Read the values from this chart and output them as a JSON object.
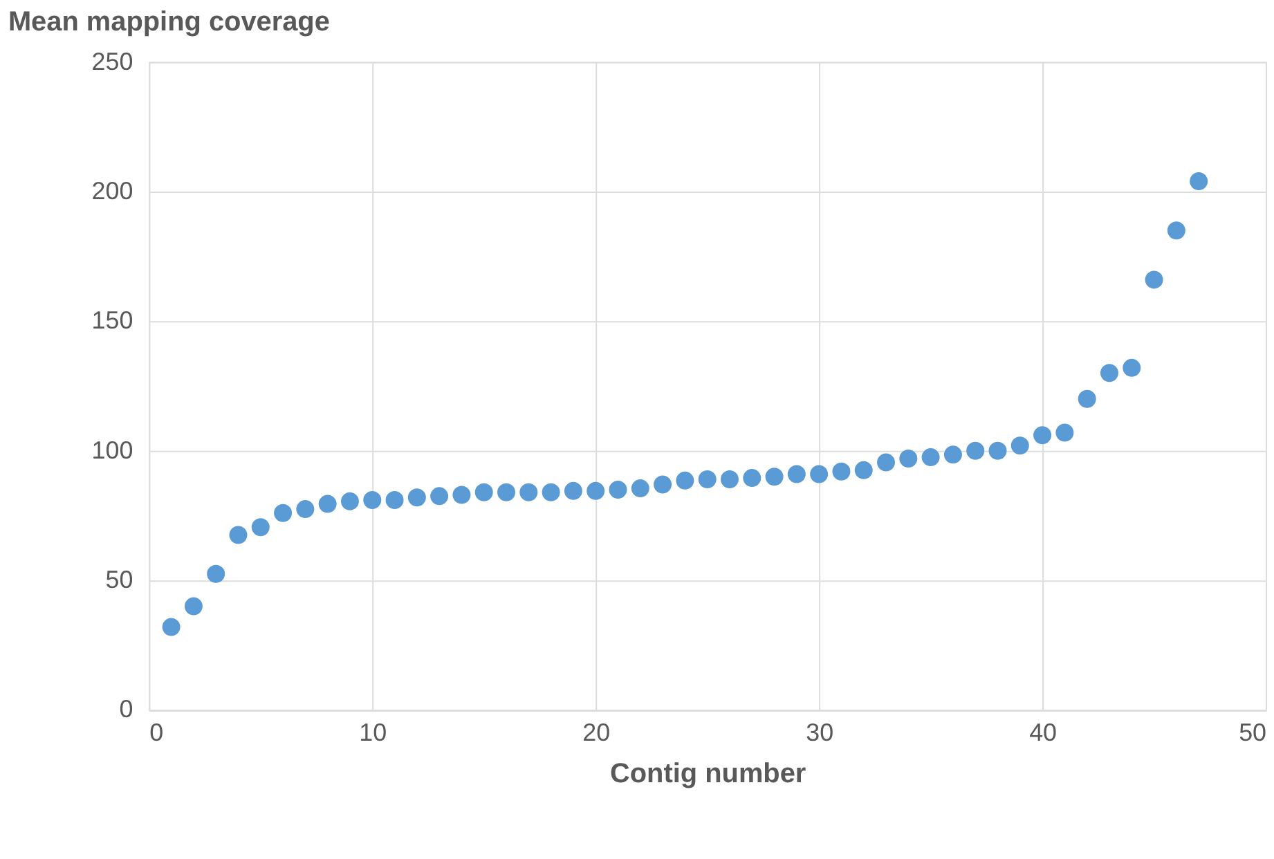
{
  "chart_data": {
    "type": "scatter",
    "ylabel": "Mean mapping coverage",
    "xlabel": "Contig number",
    "x": [
      1,
      2,
      3,
      4,
      5,
      6,
      7,
      8,
      9,
      10,
      11,
      12,
      13,
      14,
      15,
      16,
      17,
      18,
      19,
      20,
      21,
      22,
      23,
      24,
      25,
      26,
      27,
      28,
      29,
      30,
      31,
      32,
      33,
      34,
      35,
      36,
      37,
      38,
      39,
      40,
      41,
      42,
      43,
      44,
      45,
      46,
      47
    ],
    "series": [
      {
        "color": "#5b9bd5",
        "values": [
          32,
          40,
          52.5,
          67.5,
          70.5,
          76,
          77.5,
          79.5,
          80.5,
          81,
          81,
          82,
          82.5,
          83,
          84,
          84,
          84,
          84,
          84.5,
          84.5,
          85,
          85.5,
          87,
          88.5,
          89,
          89,
          89.5,
          90,
          91,
          91,
          92,
          92.5,
          95.5,
          97,
          97.5,
          98.5,
          100,
          100,
          102,
          106,
          107,
          120,
          130,
          132,
          166,
          185,
          204
        ]
      }
    ],
    "xlim": [
      0,
      50
    ],
    "xticks": [
      0,
      10,
      20,
      30,
      40,
      50
    ],
    "ylim": [
      0,
      250
    ],
    "yticks": [
      0,
      50,
      100,
      150,
      200,
      250
    ],
    "grid": true,
    "marker": "circle"
  }
}
